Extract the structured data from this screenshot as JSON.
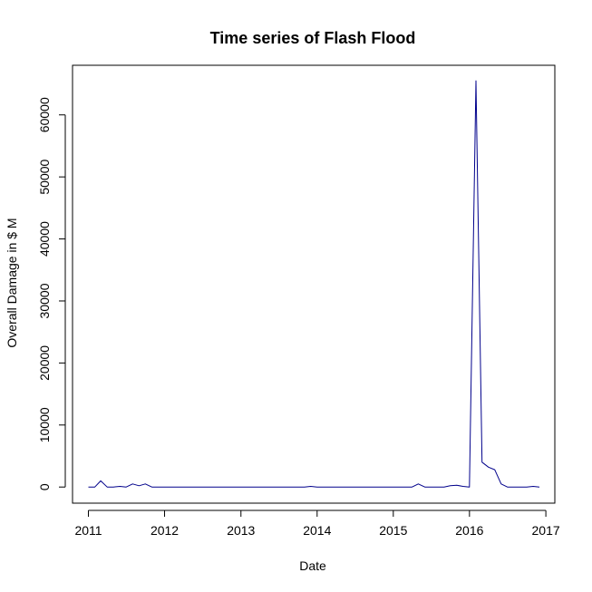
{
  "chart_data": {
    "type": "line",
    "title": "Time series of Flash Flood",
    "xlabel": "Date",
    "ylabel": "Overall Damage in $ M",
    "x_tick_labels": [
      "2011",
      "2012",
      "2013",
      "2014",
      "2015",
      "2016",
      "2017"
    ],
    "y_tick_labels": [
      "0",
      "10000",
      "20000",
      "30000",
      "40000",
      "50000",
      "60000"
    ],
    "xlim": [
      "2010-10-17",
      "2017-02-13"
    ],
    "ylim": [
      -2600,
      68000
    ],
    "grid": false,
    "legend": "none",
    "colors": {
      "line": "#00008B",
      "frame": "#000000"
    },
    "series": [
      {
        "x": [
          "2011-01",
          "2011-02",
          "2011-03",
          "2011-04",
          "2011-05",
          "2011-06",
          "2011-07",
          "2011-08",
          "2011-09",
          "2011-10",
          "2011-11",
          "2011-12",
          "2012-01",
          "2012-02",
          "2012-03",
          "2012-04",
          "2012-05",
          "2012-06",
          "2012-07",
          "2012-08",
          "2012-09",
          "2012-10",
          "2012-11",
          "2012-12",
          "2013-01",
          "2013-02",
          "2013-03",
          "2013-04",
          "2013-05",
          "2013-06",
          "2013-07",
          "2013-08",
          "2013-09",
          "2013-10",
          "2013-11",
          "2013-12",
          "2014-01",
          "2014-02",
          "2014-03",
          "2014-04",
          "2014-05",
          "2014-06",
          "2014-07",
          "2014-08",
          "2014-09",
          "2014-10",
          "2014-11",
          "2014-12",
          "2015-01",
          "2015-02",
          "2015-03",
          "2015-04",
          "2015-05",
          "2015-06",
          "2015-07",
          "2015-08",
          "2015-09",
          "2015-10",
          "2015-11",
          "2015-12",
          "2016-01",
          "2016-02",
          "2016-03",
          "2016-04",
          "2016-05",
          "2016-06",
          "2016-07",
          "2016-08",
          "2016-09",
          "2016-10",
          "2016-11",
          "2016-12"
        ],
        "y": [
          0,
          0,
          1000,
          0,
          0,
          100,
          0,
          500,
          200,
          500,
          0,
          0,
          0,
          0,
          0,
          0,
          0,
          0,
          0,
          0,
          0,
          0,
          0,
          0,
          0,
          0,
          0,
          0,
          0,
          0,
          0,
          0,
          0,
          0,
          0,
          100,
          0,
          0,
          0,
          0,
          0,
          0,
          0,
          0,
          0,
          0,
          0,
          0,
          0,
          0,
          0,
          0,
          500,
          0,
          0,
          0,
          0,
          200,
          300,
          100,
          0,
          65500,
          4000,
          3200,
          2800,
          500,
          0,
          0,
          0,
          0,
          100,
          0
        ]
      }
    ]
  }
}
